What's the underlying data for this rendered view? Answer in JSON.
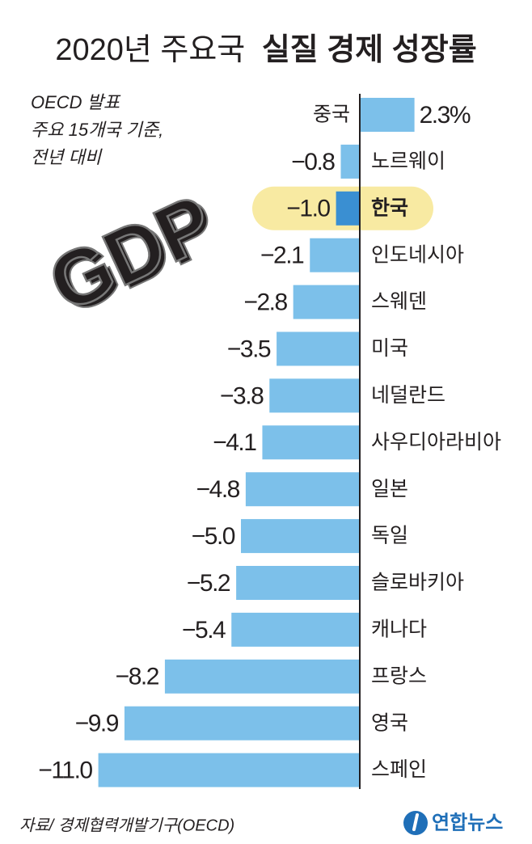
{
  "chart_data": {
    "type": "hbar",
    "title": [
      "2020년 주요국",
      "실질 경제 성장률"
    ],
    "subtitle": [
      "OECD 발표",
      "주요 15개국 기준,",
      "전년 대비"
    ],
    "categories": [
      "중국",
      "노르웨이",
      "한국",
      "인도네시아",
      "스웨덴",
      "미국",
      "네덜란드",
      "사우디아라비아",
      "일본",
      "독일",
      "슬로바키아",
      "캐나다",
      "프랑스",
      "영국",
      "스페인"
    ],
    "values": [
      2.3,
      -0.8,
      -1.0,
      -2.1,
      -2.8,
      -3.5,
      -3.8,
      -4.1,
      -4.8,
      -5.0,
      -5.2,
      -5.4,
      -8.2,
      -9.9,
      -11.0
    ],
    "value_labels": [
      "2.3%",
      "−0.8",
      "−1.0",
      "−2.1",
      "−2.8",
      "−3.5",
      "−3.8",
      "−4.1",
      "−4.8",
      "−5.0",
      "−5.2",
      "−5.4",
      "−8.2",
      "−9.9",
      "−11.0"
    ],
    "color": "#7cc0ea",
    "highlight_index": 2,
    "highlight_color": "#3a8fd2",
    "graphic_text": "GDP",
    "source": "자료/ 경제협력개발기구(OECD)",
    "logo": "연합뉴스"
  }
}
